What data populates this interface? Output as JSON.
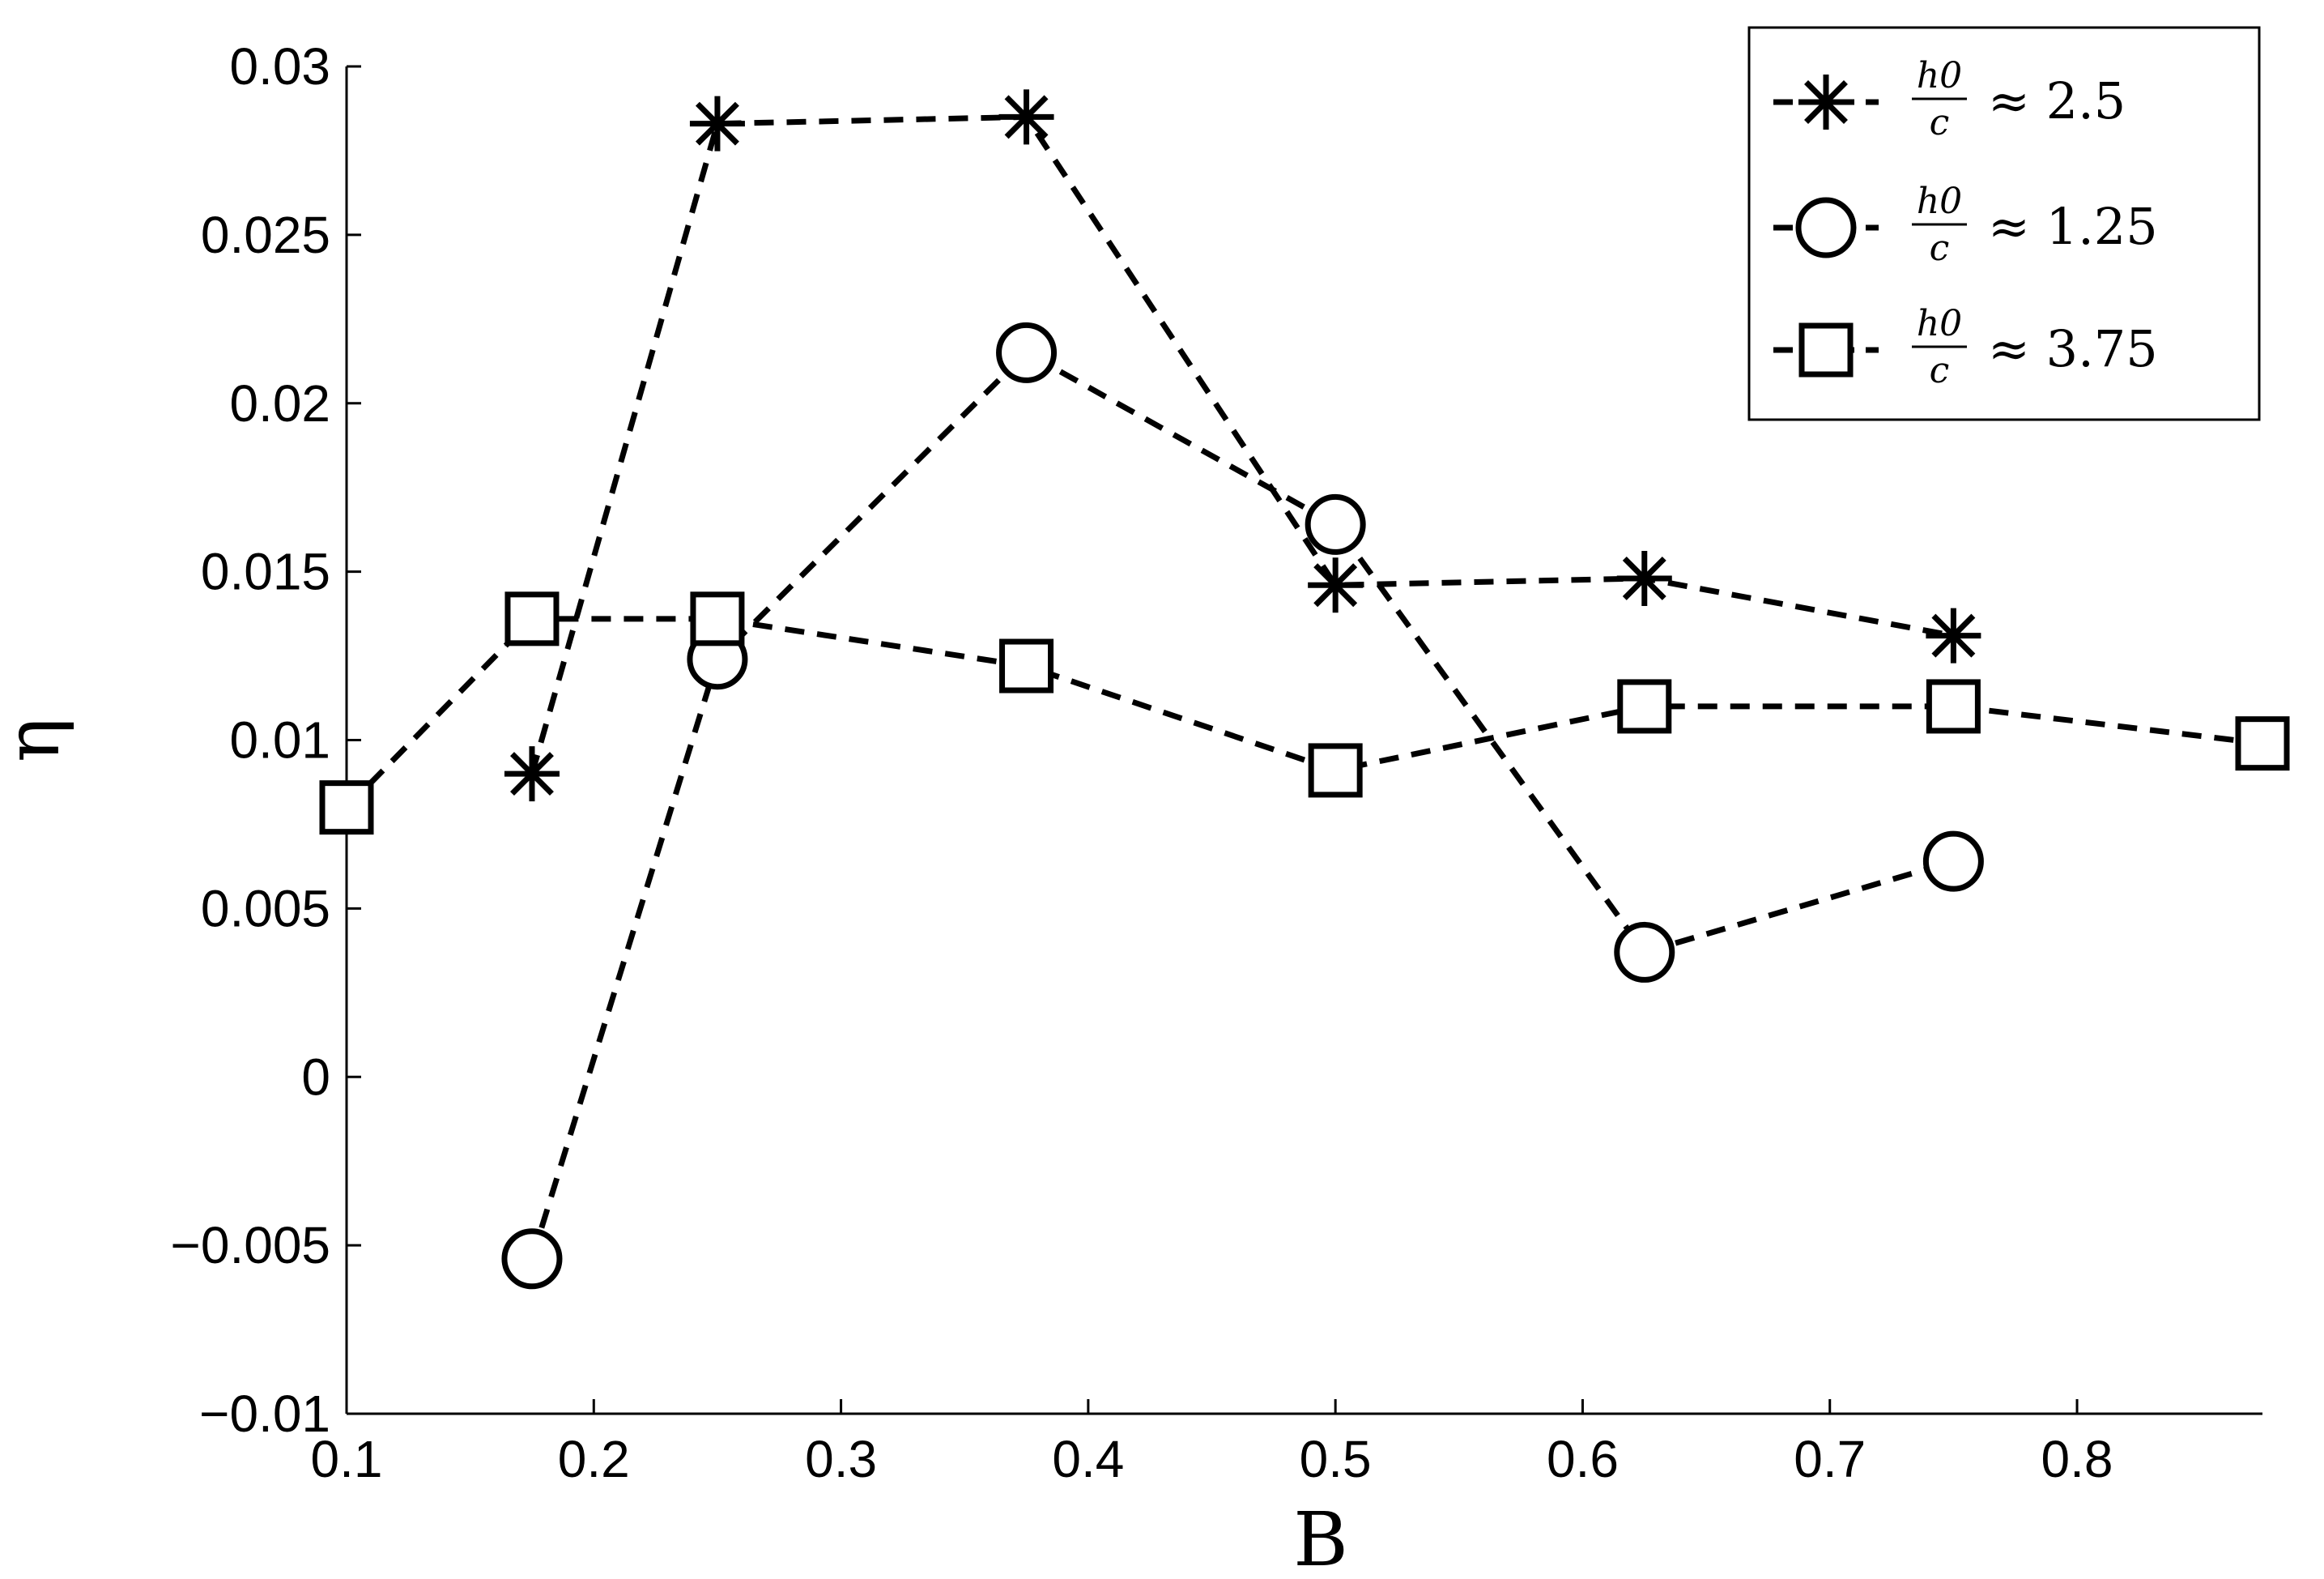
{
  "chart_data": {
    "type": "line",
    "xlabel": "B",
    "ylabel": "η",
    "xlim": [
      0.1,
      0.875
    ],
    "ylim": [
      -0.01,
      0.03
    ],
    "x_ticks": [
      "0.1",
      "0.2",
      "0.3",
      "0.4",
      "0.5",
      "0.6",
      "0.7",
      "0.8"
    ],
    "y_ticks": [
      "0.03",
      "0.025",
      "0.02",
      "0.015",
      "0.01",
      "0.005",
      "0",
      "−0.005",
      "−0.01"
    ],
    "x_tick_values": [
      0.1,
      0.2,
      0.3,
      0.4,
      0.5,
      0.6,
      0.7,
      0.8
    ],
    "y_tick_values": [
      0.03,
      0.025,
      0.02,
      0.015,
      0.01,
      0.005,
      0,
      -0.005,
      -0.01
    ],
    "grid": false,
    "legend_position": "top-right",
    "line_style": "dashed",
    "color": "#000000",
    "series": [
      {
        "name": "h0/c ≈ 2.5",
        "legend_frac_num": "h0",
        "legend_frac_den": "c",
        "legend_value": "≈ 2.5",
        "marker": "asterisk",
        "x": [
          0.175,
          0.25,
          0.375,
          0.5,
          0.625,
          0.75
        ],
        "y": [
          0.009,
          0.0283,
          0.0285,
          0.0146,
          0.0148,
          0.0131
        ]
      },
      {
        "name": "h0/c ≈ 1.25",
        "legend_frac_num": "h0",
        "legend_frac_den": "c",
        "legend_value": "≈ 1.25",
        "marker": "circle",
        "x": [
          0.175,
          0.25,
          0.375,
          0.5,
          0.625,
          0.75
        ],
        "y": [
          -0.0054,
          0.0124,
          0.0215,
          0.0164,
          0.0037,
          0.0064
        ]
      },
      {
        "name": "h0/c ≈ 3.75",
        "legend_frac_num": "h0",
        "legend_frac_den": "c",
        "legend_value": "≈ 3.75",
        "marker": "square",
        "x": [
          0.1,
          0.175,
          0.25,
          0.375,
          0.5,
          0.625,
          0.75,
          0.875
        ],
        "y": [
          0.008,
          0.0136,
          0.0136,
          0.0122,
          0.0091,
          0.011,
          0.011,
          0.0099
        ]
      }
    ]
  }
}
